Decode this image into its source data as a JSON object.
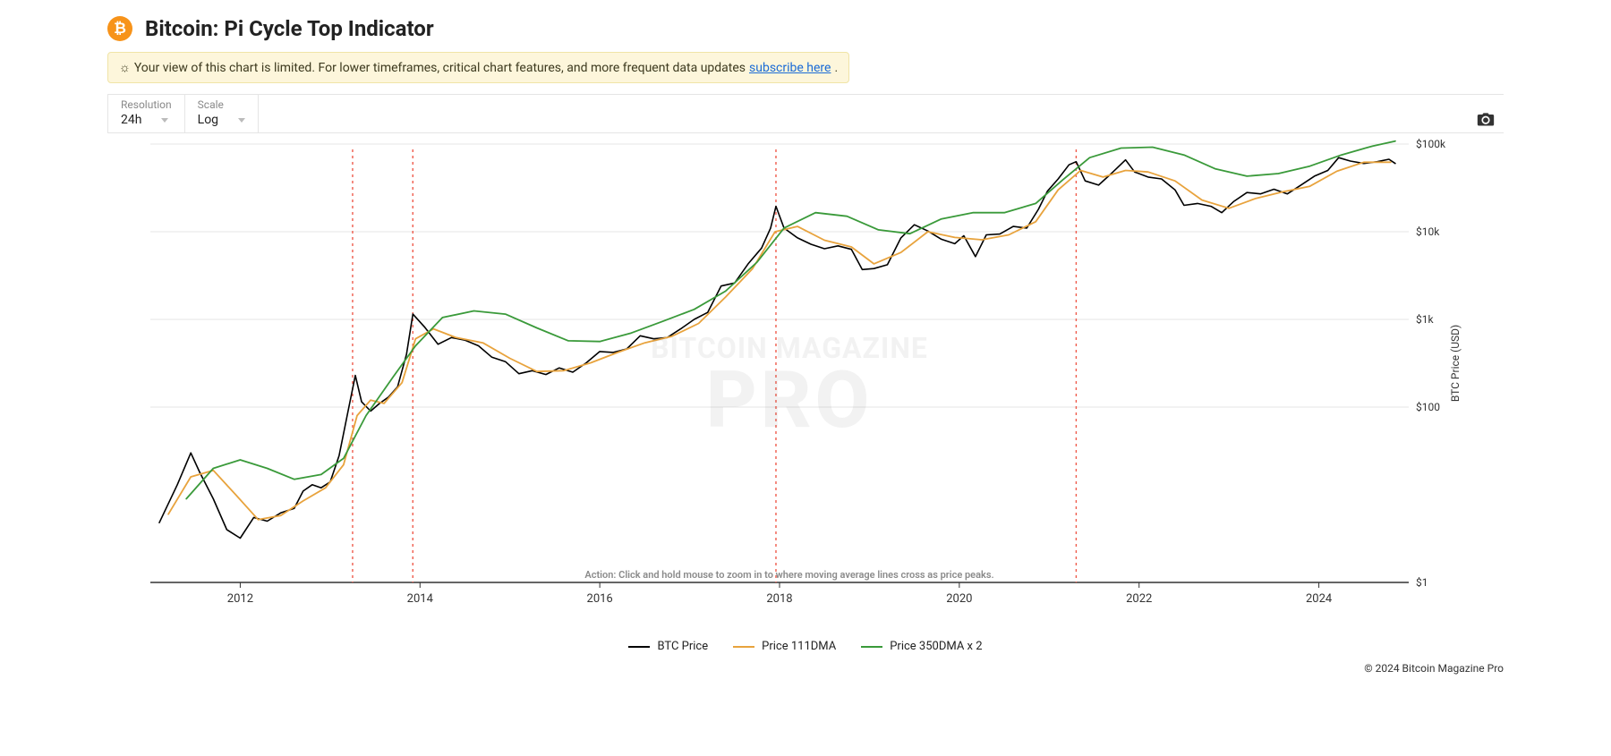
{
  "header": {
    "title": "Bitcoin: Pi Cycle Top Indicator",
    "icon_bg": "#f7931a",
    "icon_glyph": "₿"
  },
  "banner": {
    "icon": "☼",
    "text": "Your view of this chart is limited. For lower timeframes, critical chart features, and more frequent data updates ",
    "link_text": "subscribe here",
    "trailing": "."
  },
  "controls": {
    "resolution": {
      "label": "Resolution",
      "value": "24h"
    },
    "scale": {
      "label": "Scale",
      "value": "Log"
    }
  },
  "chart": {
    "type": "line",
    "scale": "log",
    "x": {
      "min": 2011,
      "max": 2025,
      "ticks": [
        2012,
        2014,
        2016,
        2018,
        2020,
        2022,
        2024
      ]
    },
    "y": {
      "min": 1,
      "max": 100000,
      "ticks": [
        1,
        100,
        1000,
        10000,
        100000
      ],
      "tick_labels": [
        "$1",
        "$100",
        "$1k",
        "$10k",
        "$100k"
      ]
    },
    "y_axis_label": "BTC Price (USD)",
    "grid_color": "#e5e5e5",
    "axis_color": "#333333",
    "background": "#ffffff",
    "vertical_markers": {
      "color": "#ef5b4c",
      "dash": "3,4",
      "years": [
        2013.25,
        2013.92,
        2017.96,
        2021.3
      ]
    },
    "watermark": {
      "line1": "BITCOIN MAGAZINE",
      "line2": "PRO"
    },
    "hint": "Action: Click and hold mouse to zoom in to where moving average lines cross as price peaks.",
    "series": [
      {
        "name": "BTC Price",
        "color": "#000000",
        "width": 1.6,
        "legend": "BTC Price",
        "points": [
          [
            2011.1,
            4.8
          ],
          [
            2011.3,
            13
          ],
          [
            2011.45,
            30
          ],
          [
            2011.55,
            18
          ],
          [
            2011.7,
            9
          ],
          [
            2011.85,
            4
          ],
          [
            2012.0,
            3.2
          ],
          [
            2012.15,
            5.5
          ],
          [
            2012.3,
            5
          ],
          [
            2012.45,
            6.2
          ],
          [
            2012.6,
            7
          ],
          [
            2012.7,
            11
          ],
          [
            2012.8,
            13
          ],
          [
            2012.9,
            12
          ],
          [
            2013.0,
            14
          ],
          [
            2013.1,
            28
          ],
          [
            2013.2,
            90
          ],
          [
            2013.28,
            230
          ],
          [
            2013.35,
            115
          ],
          [
            2013.45,
            90
          ],
          [
            2013.55,
            110
          ],
          [
            2013.65,
            130
          ],
          [
            2013.75,
            170
          ],
          [
            2013.85,
            400
          ],
          [
            2013.92,
            1150
          ],
          [
            2014.05,
            820
          ],
          [
            2014.2,
            520
          ],
          [
            2014.35,
            620
          ],
          [
            2014.5,
            580
          ],
          [
            2014.65,
            500
          ],
          [
            2014.8,
            370
          ],
          [
            2014.95,
            330
          ],
          [
            2015.1,
            240
          ],
          [
            2015.25,
            260
          ],
          [
            2015.4,
            235
          ],
          [
            2015.55,
            280
          ],
          [
            2015.7,
            250
          ],
          [
            2015.85,
            320
          ],
          [
            2016.0,
            430
          ],
          [
            2016.15,
            420
          ],
          [
            2016.3,
            460
          ],
          [
            2016.45,
            650
          ],
          [
            2016.6,
            600
          ],
          [
            2016.75,
            620
          ],
          [
            2016.9,
            780
          ],
          [
            2017.05,
            1000
          ],
          [
            2017.2,
            1200
          ],
          [
            2017.35,
            2400
          ],
          [
            2017.5,
            2600
          ],
          [
            2017.65,
            4300
          ],
          [
            2017.8,
            6500
          ],
          [
            2017.9,
            11000
          ],
          [
            2017.96,
            19500
          ],
          [
            2018.05,
            11000
          ],
          [
            2018.2,
            8500
          ],
          [
            2018.35,
            7200
          ],
          [
            2018.5,
            6400
          ],
          [
            2018.65,
            6900
          ],
          [
            2018.8,
            6300
          ],
          [
            2018.92,
            3700
          ],
          [
            2019.05,
            3800
          ],
          [
            2019.2,
            4200
          ],
          [
            2019.35,
            8500
          ],
          [
            2019.5,
            12000
          ],
          [
            2019.65,
            10200
          ],
          [
            2019.8,
            8200
          ],
          [
            2019.95,
            7300
          ],
          [
            2020.05,
            9000
          ],
          [
            2020.18,
            5200
          ],
          [
            2020.3,
            9200
          ],
          [
            2020.45,
            9400
          ],
          [
            2020.6,
            11500
          ],
          [
            2020.75,
            11000
          ],
          [
            2020.88,
            18000
          ],
          [
            2020.98,
            29000
          ],
          [
            2021.1,
            40000
          ],
          [
            2021.22,
            58000
          ],
          [
            2021.3,
            63000
          ],
          [
            2021.4,
            38000
          ],
          [
            2021.55,
            34000
          ],
          [
            2021.7,
            47000
          ],
          [
            2021.85,
            66000
          ],
          [
            2021.95,
            48000
          ],
          [
            2022.1,
            42000
          ],
          [
            2022.25,
            40000
          ],
          [
            2022.4,
            30000
          ],
          [
            2022.5,
            20000
          ],
          [
            2022.65,
            21000
          ],
          [
            2022.8,
            19500
          ],
          [
            2022.92,
            16500
          ],
          [
            2023.05,
            22000
          ],
          [
            2023.2,
            28000
          ],
          [
            2023.35,
            27000
          ],
          [
            2023.5,
            30500
          ],
          [
            2023.65,
            27000
          ],
          [
            2023.8,
            34000
          ],
          [
            2023.95,
            43000
          ],
          [
            2024.1,
            50000
          ],
          [
            2024.22,
            70000
          ],
          [
            2024.35,
            64000
          ],
          [
            2024.5,
            60000
          ],
          [
            2024.65,
            63000
          ],
          [
            2024.78,
            67000
          ],
          [
            2024.85,
            60000
          ]
        ]
      },
      {
        "name": "Price 111DMA",
        "color": "#e8a33d",
        "width": 1.8,
        "legend": "Price 111DMA",
        "points": [
          [
            2011.2,
            6
          ],
          [
            2011.45,
            16
          ],
          [
            2011.7,
            19
          ],
          [
            2011.95,
            10
          ],
          [
            2012.2,
            5.2
          ],
          [
            2012.45,
            5.8
          ],
          [
            2012.7,
            8.5
          ],
          [
            2012.95,
            12
          ],
          [
            2013.15,
            22
          ],
          [
            2013.3,
            80
          ],
          [
            2013.45,
            120
          ],
          [
            2013.6,
            110
          ],
          [
            2013.8,
            190
          ],
          [
            2013.95,
            600
          ],
          [
            2014.15,
            780
          ],
          [
            2014.4,
            620
          ],
          [
            2014.7,
            540
          ],
          [
            2015.0,
            360
          ],
          [
            2015.3,
            255
          ],
          [
            2015.6,
            260
          ],
          [
            2015.9,
            320
          ],
          [
            2016.2,
            420
          ],
          [
            2016.5,
            540
          ],
          [
            2016.8,
            640
          ],
          [
            2017.1,
            900
          ],
          [
            2017.4,
            1800
          ],
          [
            2017.7,
            3800
          ],
          [
            2017.95,
            10000
          ],
          [
            2018.2,
            11500
          ],
          [
            2018.5,
            8000
          ],
          [
            2018.8,
            6700
          ],
          [
            2019.05,
            4300
          ],
          [
            2019.35,
            5800
          ],
          [
            2019.65,
            10000
          ],
          [
            2019.95,
            8600
          ],
          [
            2020.25,
            8100
          ],
          [
            2020.55,
            9200
          ],
          [
            2020.85,
            13000
          ],
          [
            2021.1,
            30000
          ],
          [
            2021.35,
            50000
          ],
          [
            2021.6,
            42000
          ],
          [
            2021.85,
            50000
          ],
          [
            2022.1,
            48000
          ],
          [
            2022.4,
            38000
          ],
          [
            2022.7,
            23000
          ],
          [
            2023.0,
            18500
          ],
          [
            2023.3,
            24000
          ],
          [
            2023.6,
            28500
          ],
          [
            2023.9,
            33000
          ],
          [
            2024.2,
            49000
          ],
          [
            2024.5,
            62000
          ],
          [
            2024.8,
            62000
          ]
        ]
      },
      {
        "name": "Price 350DMA x 2",
        "color": "#3a9a3a",
        "width": 1.8,
        "legend": "Price 350DMA x 2",
        "points": [
          [
            2011.4,
            9
          ],
          [
            2011.7,
            20
          ],
          [
            2012.0,
            25
          ],
          [
            2012.3,
            20
          ],
          [
            2012.6,
            15
          ],
          [
            2012.9,
            17
          ],
          [
            2013.15,
            26
          ],
          [
            2013.4,
            80
          ],
          [
            2013.7,
            220
          ],
          [
            2013.95,
            500
          ],
          [
            2014.25,
            1050
          ],
          [
            2014.6,
            1250
          ],
          [
            2014.95,
            1150
          ],
          [
            2015.3,
            800
          ],
          [
            2015.65,
            570
          ],
          [
            2016.0,
            560
          ],
          [
            2016.35,
            700
          ],
          [
            2016.7,
            950
          ],
          [
            2017.05,
            1300
          ],
          [
            2017.4,
            2100
          ],
          [
            2017.75,
            4500
          ],
          [
            2018.05,
            11000
          ],
          [
            2018.4,
            16500
          ],
          [
            2018.75,
            15000
          ],
          [
            2019.1,
            10500
          ],
          [
            2019.45,
            9500
          ],
          [
            2019.8,
            14000
          ],
          [
            2020.15,
            16500
          ],
          [
            2020.5,
            16500
          ],
          [
            2020.85,
            21000
          ],
          [
            2021.15,
            39000
          ],
          [
            2021.45,
            70000
          ],
          [
            2021.8,
            90000
          ],
          [
            2022.15,
            92000
          ],
          [
            2022.5,
            75000
          ],
          [
            2022.85,
            52000
          ],
          [
            2023.2,
            43000
          ],
          [
            2023.55,
            46000
          ],
          [
            2023.9,
            56000
          ],
          [
            2024.25,
            75000
          ],
          [
            2024.6,
            95000
          ],
          [
            2024.85,
            108000
          ]
        ]
      }
    ]
  },
  "legend": {
    "items": [
      {
        "label": "BTC Price",
        "color": "#000000"
      },
      {
        "label": "Price 111DMA",
        "color": "#e8a33d"
      },
      {
        "label": "Price 350DMA x 2",
        "color": "#3a9a3a"
      }
    ]
  },
  "footer": {
    "text": "© 2024 Bitcoin Magazine Pro"
  }
}
